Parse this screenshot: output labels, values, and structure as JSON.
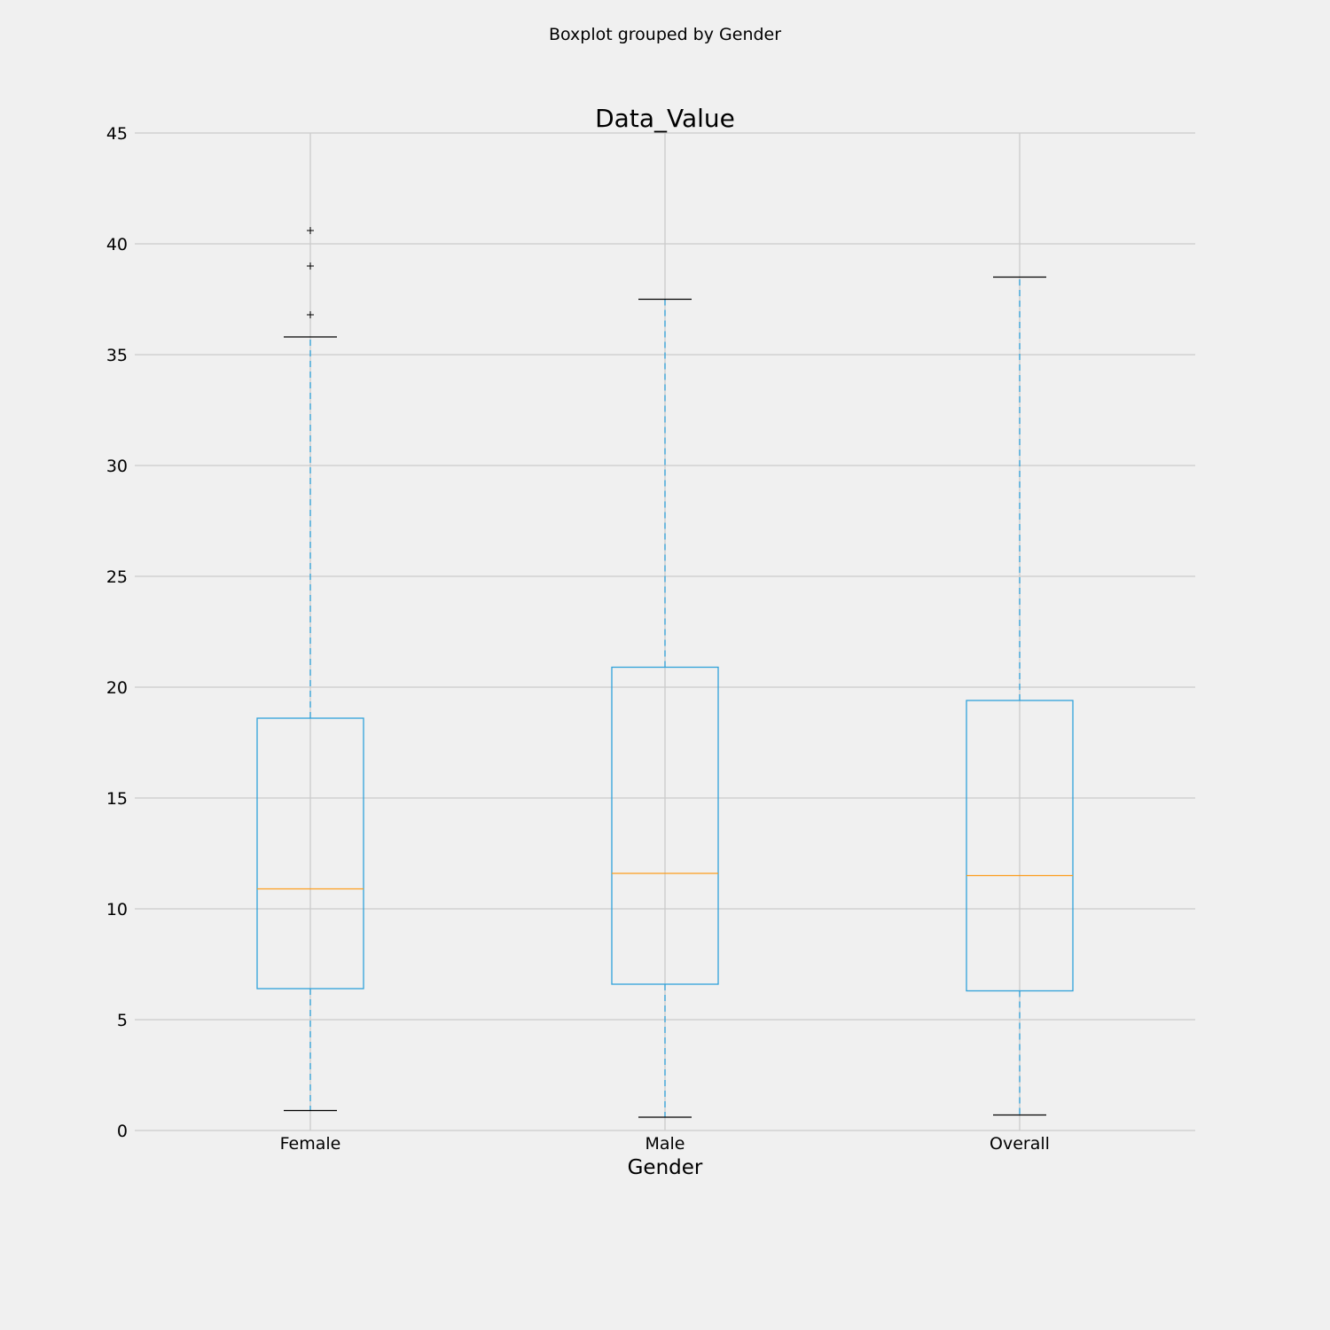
{
  "chart_data": {
    "type": "boxplot",
    "suptitle": "Boxplot grouped by Gender",
    "title": "Data_Value",
    "xlabel": "Gender",
    "ylabel": "",
    "ylim": [
      0,
      45
    ],
    "yticks": [
      "0",
      "5",
      "10",
      "15",
      "20",
      "25",
      "30",
      "35",
      "40",
      "45"
    ],
    "grid": true,
    "categories": [
      "Female",
      "Male",
      "Overall"
    ],
    "boxes": [
      {
        "category": "Female",
        "whisker_low": 0.9,
        "q1": 6.4,
        "median": 10.9,
        "q3": 18.6,
        "whisker_high": 35.8,
        "outliers": [
          36.8,
          39.0,
          40.6
        ]
      },
      {
        "category": "Male",
        "whisker_low": 0.6,
        "q1": 6.6,
        "median": 11.6,
        "q3": 20.9,
        "whisker_high": 37.5,
        "outliers": []
      },
      {
        "category": "Overall",
        "whisker_low": 0.7,
        "q1": 6.3,
        "median": 11.5,
        "q3": 19.4,
        "whisker_high": 38.5,
        "outliers": []
      }
    ],
    "colors": {
      "background": "#f0f0f0",
      "grid": "#cbcbcb",
      "box": "#30a2da",
      "whisker": "#30a2da",
      "median": "#fc9d1e",
      "cap": "#000000",
      "flier": "#000000"
    }
  }
}
